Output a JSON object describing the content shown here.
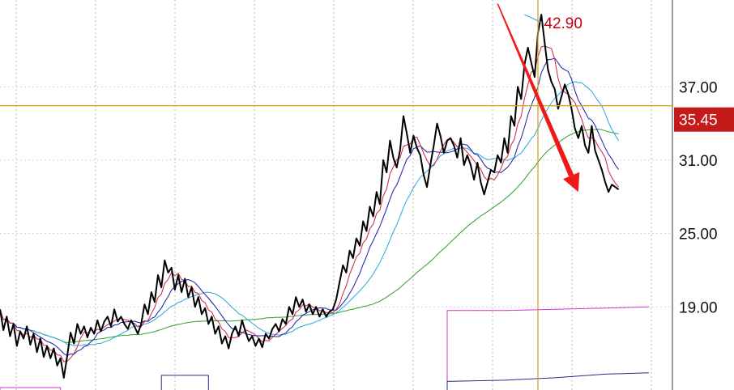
{
  "chart_data": {
    "type": "line",
    "y_range": [
      12.2,
      44.1
    ],
    "x_range": [
      0,
      200
    ],
    "y_ticks": [
      "37.00",
      "31.00",
      "25.00",
      "19.00"
    ],
    "y_tick_values": [
      37,
      31,
      25,
      19
    ],
    "grid": "vertical dashed lines, horizontal lines at price ticks",
    "crosshair": {
      "price": 35.45,
      "price_label": "35.45",
      "x_index": 160
    },
    "annotation": {
      "label": "42.90",
      "value": 42.9,
      "x_index": 156
    },
    "arrow": {
      "from": {
        "x_index": 148,
        "price": 43.8
      },
      "to": {
        "x_index": 172,
        "price": 28.4
      }
    },
    "colors": {
      "price": "#000000",
      "ma5": "#cc2244",
      "ma10": "#1a1aa6",
      "ma20": "#22aadd",
      "ma60": "#2e9e2e",
      "vol1": "#cc33cc",
      "vol2": "#2a2a88",
      "crosshair": "#e0a020",
      "arrow": "#ee1a1a",
      "badge": "#c41a1a"
    },
    "series": [
      {
        "key": "price",
        "smooth": 0,
        "values": [
          18.8,
          17.1,
          18.2,
          16.6,
          17.6,
          15.8,
          17.0,
          16.4,
          17.4,
          15.9,
          16.8,
          15.3,
          16.4,
          14.9,
          15.8,
          14.8,
          15.6,
          14.2,
          14.8,
          13.2,
          15.0,
          16.9,
          16.0,
          17.6,
          16.8,
          17.4,
          16.5,
          17.3,
          16.8,
          17.9,
          17.0,
          17.8,
          18.2,
          17.4,
          18.8,
          17.8,
          18.2,
          17.6,
          17.2,
          17.9,
          17.4,
          16.8,
          17.6,
          19.2,
          18.4,
          20.2,
          19.4,
          21.6,
          20.6,
          22.8,
          21.8,
          22.2,
          20.4,
          21.6,
          20.2,
          21.3,
          19.8,
          20.6,
          19.0,
          19.8,
          18.4,
          18.9,
          17.6,
          18.2,
          16.8,
          17.4,
          16.0,
          16.6,
          15.6,
          16.8,
          17.4,
          16.6,
          17.9,
          17.0,
          16.2,
          16.6,
          15.8,
          16.4,
          15.7,
          16.8,
          16.4,
          17.2,
          17.6,
          17.0,
          18.0,
          17.6,
          19.0,
          18.4,
          19.8,
          19.0,
          19.6,
          18.6,
          19.2,
          18.4,
          19.0,
          18.2,
          18.8,
          18.2,
          18.6,
          18.8,
          19.6,
          21.0,
          22.4,
          21.8,
          23.6,
          23.0,
          24.6,
          24.0,
          26.0,
          25.2,
          27.2,
          26.4,
          28.4,
          27.4,
          31.0,
          30.0,
          32.6,
          31.2,
          30.4,
          31.8,
          34.6,
          33.2,
          31.6,
          33.0,
          32.0,
          31.4,
          29.8,
          28.8,
          30.6,
          32.2,
          34.0,
          33.0,
          31.6,
          32.6,
          32.8,
          32.2,
          31.2,
          32.8,
          30.6,
          31.4,
          30.6,
          29.4,
          30.8,
          29.2,
          28.2,
          29.2,
          30.2,
          30.0,
          31.4,
          30.8,
          32.8,
          31.6,
          34.6,
          33.8,
          37.0,
          36.0,
          38.8,
          40.2,
          39.0,
          37.8,
          41.4,
          42.9,
          40.6,
          38.4,
          37.4,
          36.8,
          35.2,
          36.2,
          37.2,
          36.4,
          35.2,
          33.6,
          32.8,
          33.8,
          32.2,
          31.6,
          33.8,
          31.8,
          31.0,
          30.2,
          29.2,
          28.4,
          29.0,
          28.8,
          28.6
        ]
      },
      {
        "key": "ma5",
        "smooth": 5
      },
      {
        "key": "ma10",
        "smooth": 10
      },
      {
        "key": "ma20",
        "smooth": 20
      },
      {
        "key": "ma60",
        "smooth": 60
      },
      {
        "key": "vol1",
        "values": [
          {
            "x": 0,
            "y": 12.2
          },
          {
            "x": 0,
            "y": 12.4
          },
          {
            "x": 18,
            "y": 12.4
          },
          {
            "x": 18,
            "y": 12.2
          }
        ]
      },
      {
        "key": "vol2",
        "values": [
          {
            "x": 48,
            "y": 12.2
          },
          {
            "x": 48,
            "y": 13.4
          },
          {
            "x": 62,
            "y": 13.4
          },
          {
            "x": 62,
            "y": 12.2
          }
        ]
      },
      {
        "key": "vol1b",
        "values": [
          {
            "x": 133,
            "y": 12.2
          },
          {
            "x": 133,
            "y": 18.7
          },
          {
            "x": 150,
            "y": 18.7
          },
          {
            "x": 165,
            "y": 18.8
          },
          {
            "x": 180,
            "y": 18.9
          },
          {
            "x": 193,
            "y": 19.0
          }
        ]
      },
      {
        "key": "vol2b",
        "values": [
          {
            "x": 133,
            "y": 12.2
          },
          {
            "x": 133,
            "y": 12.9
          },
          {
            "x": 150,
            "y": 13.0
          },
          {
            "x": 165,
            "y": 13.2
          },
          {
            "x": 180,
            "y": 13.5
          },
          {
            "x": 193,
            "y": 13.6
          }
        ]
      }
    ]
  }
}
